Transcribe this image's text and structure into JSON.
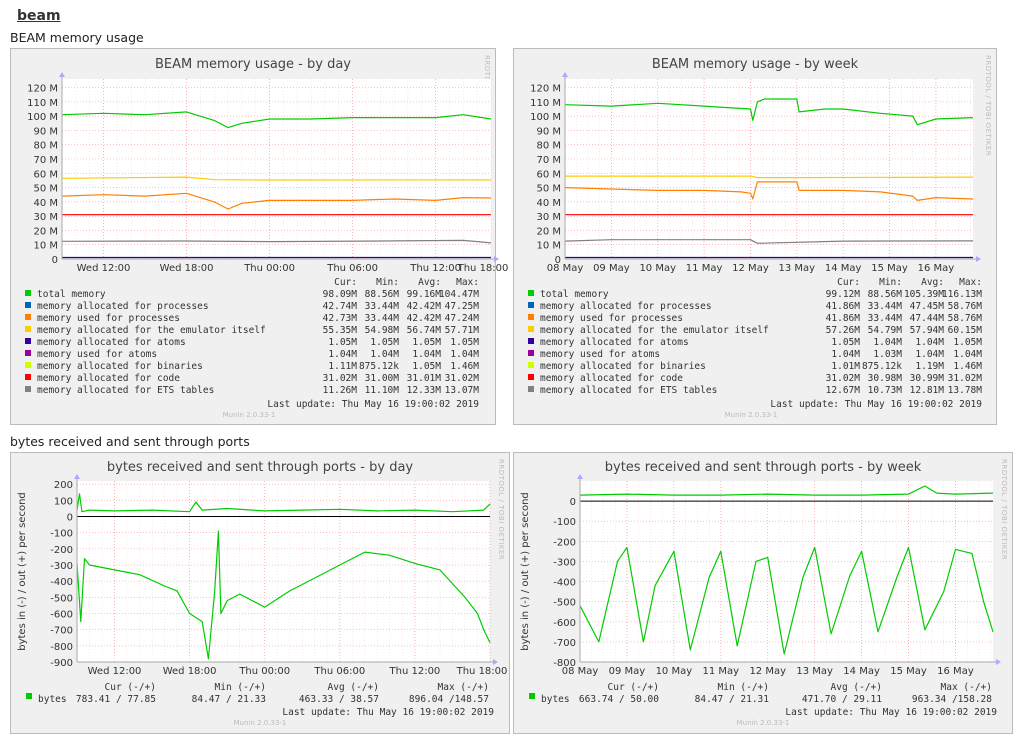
{
  "page": {
    "link": "beam"
  },
  "sections": {
    "memory": "BEAM memory usage",
    "bytes": "bytes received and sent through ports"
  },
  "colors": {
    "total": "#00cc00",
    "procs": "#0066b3",
    "procs_used": "#ff8000",
    "emulator": "#ffcc00",
    "atoms": "#330099",
    "atoms_used": "#990099",
    "binaries": "#ccff00",
    "code": "#ff0000",
    "ets": "#808080",
    "bytes": "#00cc00",
    "zero": "#000000",
    "grid": "#ff9999",
    "panel": "#f0f0f0",
    "plot": "#ffffff"
  },
  "memory_day": {
    "title": "BEAM memory usage - by day",
    "watermark": "RRDTOOL / TOBI OETIKER",
    "version": "Munin 2.0.33-1",
    "last_update": "Last update:  Thu May 16 19:00:02 2019",
    "headers": [
      "Cur:",
      "Min:",
      "Avg:",
      "Max:"
    ],
    "rows": [
      {
        "label": "total memory",
        "color": "#00cc00",
        "v": [
          "98.09M",
          "88.56M",
          "99.16M",
          "104.47M"
        ]
      },
      {
        "label": "memory allocated for processes",
        "color": "#0066b3",
        "v": [
          "42.74M",
          "33.44M",
          "42.42M",
          "47.25M"
        ]
      },
      {
        "label": "memory used for processes",
        "color": "#ff8000",
        "v": [
          "42.73M",
          "33.44M",
          "42.42M",
          "47.24M"
        ]
      },
      {
        "label": "memory allocated for the emulator itself",
        "color": "#ffcc00",
        "v": [
          "55.35M",
          "54.98M",
          "56.74M",
          "57.71M"
        ]
      },
      {
        "label": "memory allocated for atoms",
        "color": "#330099",
        "v": [
          "1.05M",
          "1.05M",
          "1.05M",
          "1.05M"
        ]
      },
      {
        "label": "memory used for atoms",
        "color": "#990099",
        "v": [
          "1.04M",
          "1.04M",
          "1.04M",
          "1.04M"
        ]
      },
      {
        "label": "memory allocated for binaries",
        "color": "#ccff00",
        "v": [
          "1.11M",
          "875.12k",
          "1.05M",
          "1.46M"
        ]
      },
      {
        "label": "memory allocated for code",
        "color": "#ff0000",
        "v": [
          "31.02M",
          "31.00M",
          "31.01M",
          "31.02M"
        ]
      },
      {
        "label": "memory allocated for ETS tables",
        "color": "#808080",
        "v": [
          "11.26M",
          "11.10M",
          "12.33M",
          "13.07M"
        ]
      }
    ]
  },
  "memory_week": {
    "title": "BEAM memory usage - by week",
    "watermark": "RRDTOOL / TOBI OETIKER",
    "version": "Munin 2.0.33-1",
    "last_update": "Last update:  Thu May 16 19:00:02 2019",
    "headers": [
      "Cur:",
      "Min:",
      "Avg:",
      "Max:"
    ],
    "rows": [
      {
        "label": "total memory",
        "color": "#00cc00",
        "v": [
          "99.12M",
          "88.56M",
          "105.39M",
          "116.13M"
        ]
      },
      {
        "label": "memory allocated for processes",
        "color": "#0066b3",
        "v": [
          "41.86M",
          "33.44M",
          "47.45M",
          "58.76M"
        ]
      },
      {
        "label": "memory used for processes",
        "color": "#ff8000",
        "v": [
          "41.86M",
          "33.44M",
          "47.44M",
          "58.76M"
        ]
      },
      {
        "label": "memory allocated for the emulator itself",
        "color": "#ffcc00",
        "v": [
          "57.26M",
          "54.79M",
          "57.94M",
          "60.15M"
        ]
      },
      {
        "label": "memory allocated for atoms",
        "color": "#330099",
        "v": [
          "1.05M",
          "1.04M",
          "1.04M",
          "1.05M"
        ]
      },
      {
        "label": "memory used for atoms",
        "color": "#990099",
        "v": [
          "1.04M",
          "1.03M",
          "1.04M",
          "1.04M"
        ]
      },
      {
        "label": "memory allocated for binaries",
        "color": "#ccff00",
        "v": [
          "1.01M",
          "875.12k",
          "1.19M",
          "1.46M"
        ]
      },
      {
        "label": "memory allocated for code",
        "color": "#ff0000",
        "v": [
          "31.02M",
          "30.98M",
          "30.99M",
          "31.02M"
        ]
      },
      {
        "label": "memory allocated for ETS tables",
        "color": "#808080",
        "v": [
          "12.67M",
          "10.73M",
          "12.81M",
          "13.78M"
        ]
      }
    ]
  },
  "bytes_day": {
    "title": "bytes received and sent through ports - by day",
    "watermark": "RRDTOOL / TOBI OETIKER",
    "version": "Munin 2.0.33-1",
    "ylabel": "bytes in (-) / out (+) per second",
    "last_update": "Last update:  Thu May 16 19:00:02 2019",
    "headers": [
      "Cur (-/+)",
      "Min (-/+)",
      "Avg (-/+)",
      "Max (-/+)"
    ],
    "rows": [
      {
        "label": "bytes",
        "color": "#00cc00",
        "v": [
          "783.41 / 77.85",
          "84.47 / 21.33",
          "463.33 / 38.57",
          "896.04 /148.57"
        ]
      }
    ]
  },
  "bytes_week": {
    "title": "bytes received and sent through ports - by week",
    "watermark": "RRDTOOL / TOBI OETIKER",
    "version": "Munin 2.0.33-1",
    "ylabel": "bytes in (-) / out (+) per second",
    "last_update": "Last update:  Thu May 16 19:00:02 2019",
    "headers": [
      "Cur (-/+)",
      "Min (-/+)",
      "Avg (-/+)",
      "Max (-/+)"
    ],
    "rows": [
      {
        "label": "bytes",
        "color": "#00cc00",
        "v": [
          "663.74 / 50.00",
          "84.47 / 21.31",
          "471.70 / 29.11",
          "963.34 /158.28"
        ]
      }
    ]
  },
  "chart_data": [
    {
      "id": "memory_day",
      "type": "line",
      "title": "BEAM memory usage - by day",
      "yticks": [
        0,
        10,
        20,
        30,
        40,
        50,
        60,
        70,
        80,
        90,
        100,
        110,
        120
      ],
      "ytick_labels": [
        "0",
        "10 M",
        "20 M",
        "30 M",
        "40 M",
        "50 M",
        "60 M",
        "70 M",
        "80 M",
        "90 M",
        "100 M",
        "110 M",
        "120 M"
      ],
      "ylim": [
        0,
        126
      ],
      "xlim": [
        9,
        40
      ],
      "xticks": [
        12,
        18,
        24,
        30,
        36,
        42
      ],
      "xtick_labels": [
        "Wed 12:00",
        "Wed 18:00",
        "Thu 00:00",
        "Thu 06:00",
        "Thu 12:00",
        "Thu 18:00"
      ],
      "series": [
        {
          "name": "total memory",
          "color": "#00cc00",
          "x": [
            9,
            12,
            15,
            18,
            20,
            21,
            22,
            24,
            27,
            30,
            33,
            36,
            38,
            40
          ],
          "y": [
            101,
            102,
            101,
            103,
            97,
            92,
            95,
            98,
            98,
            99,
            99,
            99,
            101,
            98
          ]
        },
        {
          "name": "memory used for processes",
          "color": "#ff8000",
          "x": [
            9,
            12,
            15,
            18,
            20,
            21,
            22,
            24,
            27,
            30,
            33,
            36,
            38,
            40
          ],
          "y": [
            44,
            45,
            44,
            46,
            40,
            35,
            39,
            41,
            41,
            41,
            42,
            41,
            43,
            42.7
          ]
        },
        {
          "name": "memory allocated for the emulator itself",
          "color": "#ffcc00",
          "x": [
            9,
            18,
            20,
            24,
            40
          ],
          "y": [
            56.5,
            57.3,
            55.5,
            55.3,
            55.4
          ]
        },
        {
          "name": "memory allocated for code",
          "color": "#ff0000",
          "x": [
            9,
            40
          ],
          "y": [
            31,
            31
          ]
        },
        {
          "name": "memory allocated for ETS tables",
          "color": "#808080",
          "x": [
            9,
            18,
            24,
            33,
            38,
            40
          ],
          "y": [
            12.4,
            12.6,
            12.2,
            12.7,
            13,
            11.3
          ]
        },
        {
          "name": "memory allocated for atoms",
          "color": "#330099",
          "x": [
            9,
            40
          ],
          "y": [
            1.05,
            1.05
          ]
        }
      ]
    },
    {
      "id": "memory_week",
      "type": "line",
      "title": "BEAM memory usage - by week",
      "yticks": [
        0,
        10,
        20,
        30,
        40,
        50,
        60,
        70,
        80,
        90,
        100,
        110,
        120
      ],
      "ytick_labels": [
        "0",
        "10 M",
        "20 M",
        "30 M",
        "40 M",
        "50 M",
        "60 M",
        "70 M",
        "80 M",
        "90 M",
        "100 M",
        "110 M",
        "120 M"
      ],
      "ylim": [
        0,
        126
      ],
      "xlim": [
        8,
        16.8
      ],
      "xticks": [
        8,
        9,
        10,
        11,
        12,
        13,
        14,
        15,
        16
      ],
      "xtick_labels": [
        "08 May",
        "09 May",
        "10 May",
        "11 May",
        "12 May",
        "13 May",
        "14 May",
        "15 May",
        "16 May"
      ],
      "series": [
        {
          "name": "total memory",
          "color": "#00cc00",
          "x": [
            8,
            9,
            10,
            11,
            11.5,
            12,
            12.05,
            12.15,
            12.3,
            13,
            13.05,
            13.6,
            14,
            14.8,
            15.5,
            15.6,
            16,
            16.8
          ],
          "y": [
            108,
            107,
            109,
            107,
            106,
            105,
            97,
            110,
            112,
            112,
            103,
            105,
            105,
            102,
            100,
            94,
            98,
            99
          ]
        },
        {
          "name": "memory used for processes",
          "color": "#ff8000",
          "x": [
            8,
            9,
            10,
            11,
            11.8,
            12,
            12.05,
            12.15,
            13,
            13.05,
            14,
            14.8,
            15.5,
            15.6,
            16,
            16.8
          ],
          "y": [
            50,
            49,
            48,
            48,
            47,
            46,
            42,
            54,
            54,
            48,
            48,
            47,
            44,
            41,
            43,
            42
          ]
        },
        {
          "name": "memory allocated for the emulator itself",
          "color": "#ffcc00",
          "x": [
            8,
            12,
            12.15,
            13,
            16.8
          ],
          "y": [
            58,
            58,
            57,
            57,
            57.3
          ]
        },
        {
          "name": "memory allocated for code",
          "color": "#ff0000",
          "x": [
            8,
            16.8
          ],
          "y": [
            31,
            31
          ]
        },
        {
          "name": "memory allocated for ETS tables",
          "color": "#808080",
          "x": [
            8,
            9,
            12,
            12.15,
            14,
            16.8
          ],
          "y": [
            12.5,
            13.5,
            13.5,
            11,
            12.5,
            12.7
          ]
        },
        {
          "name": "memory allocated for atoms",
          "color": "#330099",
          "x": [
            8,
            16.8
          ],
          "y": [
            1.05,
            1.05
          ]
        }
      ]
    },
    {
      "id": "bytes_day",
      "type": "line",
      "title": "bytes received and sent through ports - by day",
      "ylabel": "bytes in (-) / out (+) per second",
      "yticks": [
        200,
        100,
        0,
        -100,
        -200,
        -300,
        -400,
        -500,
        -600,
        -700,
        -800,
        -900
      ],
      "ytick_labels": [
        "200",
        "100",
        "0",
        "-100",
        "-200",
        "-300",
        "-400",
        "-500",
        "-600",
        "-700",
        "-800",
        "-900"
      ],
      "ylim": [
        -900,
        220
      ],
      "xlim": [
        9,
        42
      ],
      "xticks": [
        12,
        18,
        24,
        30,
        36,
        42
      ],
      "xtick_labels": [
        "Wed 12:00",
        "Wed 18:00",
        "Thu 00:00",
        "Thu 06:00",
        "Thu 12:00",
        "Thu 18:00"
      ],
      "zero_line": 0,
      "series": [
        {
          "name": "bytes out",
          "color": "#00cc00",
          "x": [
            9,
            9.2,
            9.4,
            10,
            12,
            15,
            18,
            18.5,
            19,
            21,
            24,
            27,
            30,
            33,
            36,
            39,
            41.5,
            42
          ],
          "y": [
            40,
            140,
            30,
            40,
            35,
            40,
            30,
            90,
            40,
            50,
            35,
            40,
            45,
            35,
            40,
            30,
            40,
            78
          ]
        },
        {
          "name": "bytes in",
          "color": "#00cc00",
          "x": [
            9,
            9.3,
            9.6,
            10,
            12,
            14,
            16,
            17,
            18,
            19,
            19.5,
            20,
            20.3,
            20.5,
            21,
            22,
            24,
            26,
            28,
            30,
            32,
            34,
            36,
            38,
            40,
            41,
            41.5,
            42
          ],
          "y": [
            -290,
            -650,
            -260,
            -300,
            -330,
            -360,
            -430,
            -460,
            -600,
            -650,
            -880,
            -460,
            -90,
            -600,
            -520,
            -480,
            -560,
            -460,
            -380,
            -300,
            -220,
            -240,
            -290,
            -330,
            -500,
            -600,
            -700,
            -780
          ]
        }
      ]
    },
    {
      "id": "bytes_week",
      "type": "line",
      "title": "bytes received and sent through ports - by week",
      "ylabel": "bytes in (-) / out (+) per second",
      "yticks": [
        0,
        -100,
        -200,
        -300,
        -400,
        -500,
        -600,
        -700,
        -800
      ],
      "ytick_labels": [
        "0",
        "-100",
        "-200",
        "-300",
        "-400",
        "-500",
        "-600",
        "-700",
        "-800"
      ],
      "ylim": [
        -800,
        100
      ],
      "xlim": [
        8,
        16.8
      ],
      "xticks": [
        8,
        9,
        10,
        11,
        12,
        13,
        14,
        15,
        16
      ],
      "xtick_labels": [
        "08 May",
        "09 May",
        "10 May",
        "11 May",
        "12 May",
        "13 May",
        "14 May",
        "15 May",
        "16 May"
      ],
      "zero_line": 0,
      "series": [
        {
          "name": "bytes out",
          "color": "#00cc00",
          "x": [
            8,
            9,
            10,
            11,
            12,
            13,
            14,
            15,
            15.35,
            15.6,
            16,
            16.8
          ],
          "y": [
            30,
            35,
            30,
            30,
            35,
            30,
            30,
            35,
            75,
            40,
            35,
            40
          ]
        },
        {
          "name": "bytes in",
          "color": "#00cc00",
          "x": [
            8,
            8.4,
            8.8,
            9,
            9.35,
            9.6,
            10,
            10.35,
            10.75,
            11,
            11.35,
            11.75,
            12,
            12.35,
            12.75,
            13,
            13.35,
            13.75,
            14,
            14.35,
            14.75,
            15,
            15.35,
            15.75,
            16,
            16.35,
            16.6,
            16.8
          ],
          "y": [
            -520,
            -700,
            -300,
            -230,
            -700,
            -420,
            -250,
            -740,
            -380,
            -250,
            -720,
            -300,
            -280,
            -760,
            -380,
            -230,
            -660,
            -370,
            -250,
            -650,
            -380,
            -230,
            -640,
            -450,
            -240,
            -260,
            -500,
            -650
          ]
        }
      ]
    }
  ]
}
